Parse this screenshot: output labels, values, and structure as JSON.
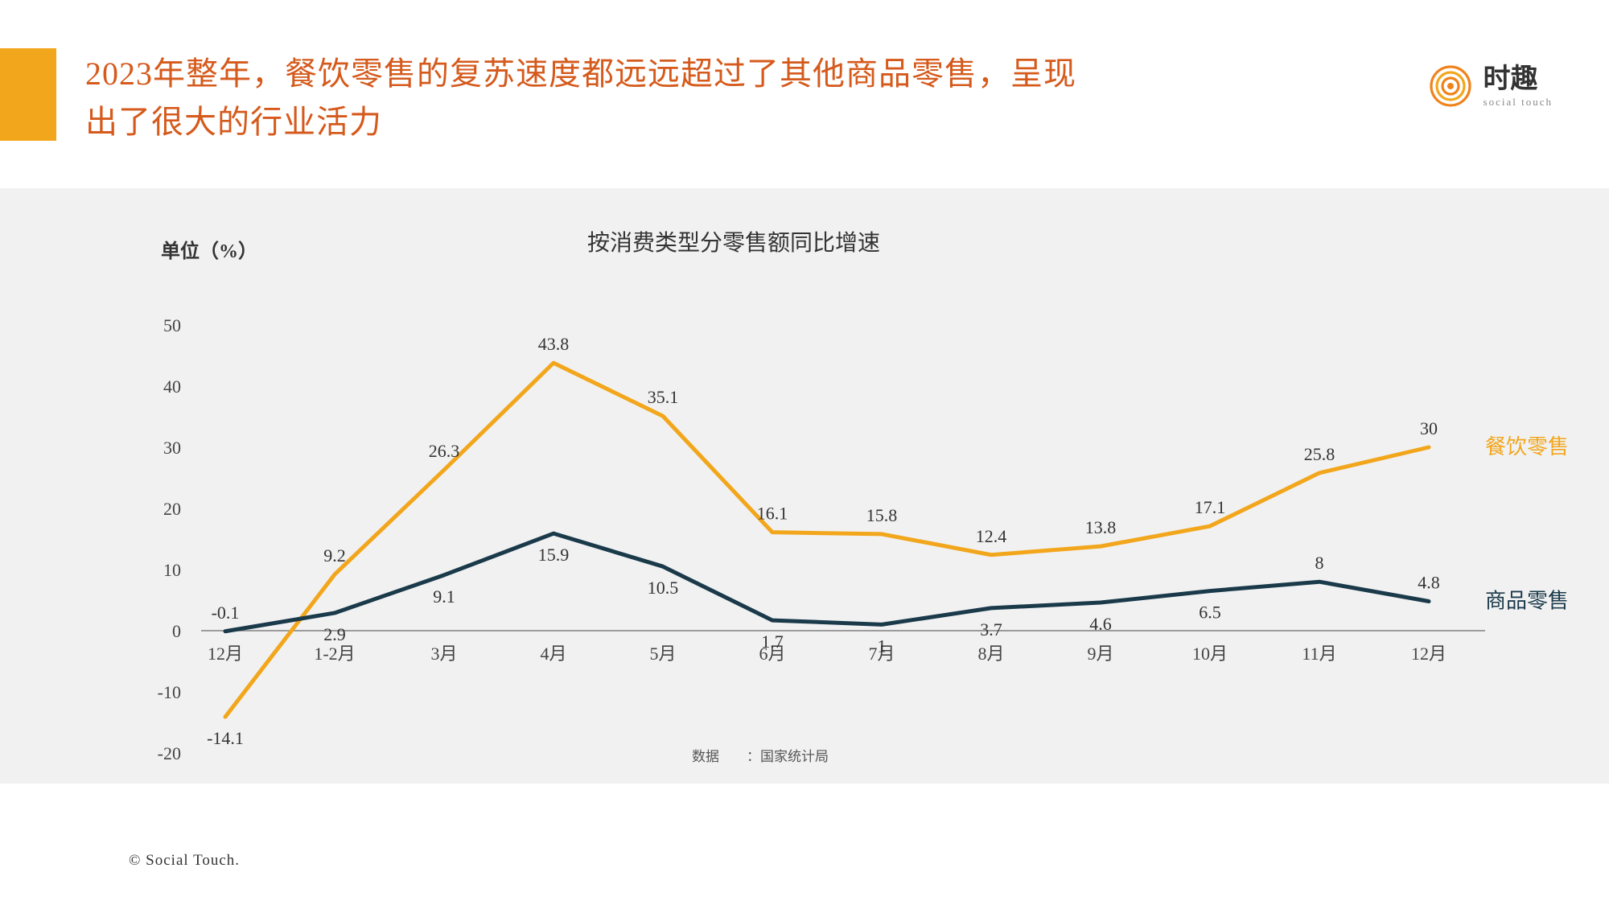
{
  "header": {
    "title": "2023年整年，餐饮零售的复苏速度都远远超过了其他商品零售，呈现出了很大的行业活力",
    "title_color": "#d55a1c",
    "accent_color": "#f2a61b",
    "logo_cn": "时趣",
    "logo_en": "social touch",
    "logo_color": "#f0821b"
  },
  "chart": {
    "type": "line",
    "background_color": "#f1f1f2",
    "title": "按消费类型分零售额同比增速",
    "y_unit_label": "单位（%）",
    "source_label": "数据　　：国家统计局",
    "categories": [
      "12月",
      "1-2月",
      "3月",
      "4月",
      "5月",
      "6月",
      "7月",
      "8月",
      "9月",
      "10月",
      "11月",
      "12月"
    ],
    "ylim": [
      -20,
      50
    ],
    "ytick_step": 10,
    "yticks": [
      -20,
      -10,
      0,
      10,
      20,
      30,
      40,
      50
    ],
    "axis_fontsize": 22,
    "axis_color": "#444444",
    "axis_line_color": "#808080",
    "series": [
      {
        "name": "餐饮零售",
        "color": "#f2a61b",
        "line_width": 5,
        "data": [
          -14.1,
          9.2,
          26.3,
          43.8,
          35.1,
          16.1,
          15.8,
          12.4,
          13.8,
          17.1,
          25.8,
          30
        ],
        "label_positions": [
          "below",
          "above",
          "above",
          "above",
          "above",
          "above",
          "above",
          "above",
          "above",
          "above",
          "above",
          "above"
        ]
      },
      {
        "name": "商品零售",
        "color": "#1a3a4a",
        "line_width": 5,
        "data": [
          -0.1,
          2.9,
          9.1,
          15.9,
          10.5,
          1.7,
          1,
          3.7,
          4.6,
          6.5,
          8,
          4.8
        ],
        "label_positions": [
          "above",
          "below",
          "below",
          "below",
          "below",
          "below",
          "below",
          "below",
          "below",
          "below",
          "above",
          "above"
        ]
      }
    ],
    "label_fontsize": 22,
    "label_color": "#333333",
    "series_label_fontsize": 26,
    "plot": {
      "x_start": 280,
      "x_step": 136,
      "y_zero": 550,
      "y_per_unit": 7.6
    }
  },
  "footer": {
    "copyright": "© Social Touch."
  }
}
